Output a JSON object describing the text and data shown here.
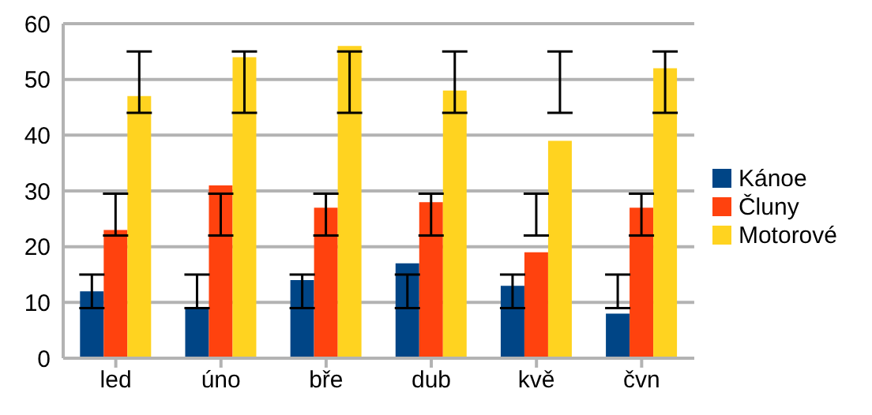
{
  "chart_data": {
    "type": "bar",
    "categories": [
      "led",
      "úno",
      "bře",
      "dub",
      "kvě",
      "čvn"
    ],
    "series": [
      {
        "name": "Kánoe",
        "color": "#004586",
        "values": [
          12,
          9,
          14,
          17,
          13,
          8
        ],
        "errors": [
          [
            9,
            15
          ],
          [
            9,
            15
          ],
          [
            9,
            15
          ],
          [
            9,
            15
          ],
          [
            9,
            15
          ],
          [
            9,
            15
          ]
        ]
      },
      {
        "name": "Čluny",
        "color": "#ff420e",
        "values": [
          23,
          31,
          27,
          28,
          19,
          27
        ],
        "errors": [
          [
            22,
            29.5
          ],
          [
            22,
            29.5
          ],
          [
            22,
            29.5
          ],
          [
            22,
            29.5
          ],
          [
            22,
            29.5
          ],
          [
            22,
            29.5
          ]
        ]
      },
      {
        "name": "Motorové",
        "color": "#ffd320",
        "values": [
          47,
          54,
          56,
          48,
          39,
          52
        ],
        "errors": [
          [
            44,
            55
          ],
          [
            44,
            55
          ],
          [
            44,
            55
          ],
          [
            44,
            55
          ],
          [
            44,
            55
          ],
          [
            44,
            55
          ]
        ]
      }
    ],
    "ylim": [
      0,
      60
    ],
    "yticks": [
      0,
      10,
      20,
      30,
      40,
      50,
      60
    ],
    "grid": "y",
    "legend": "right"
  }
}
